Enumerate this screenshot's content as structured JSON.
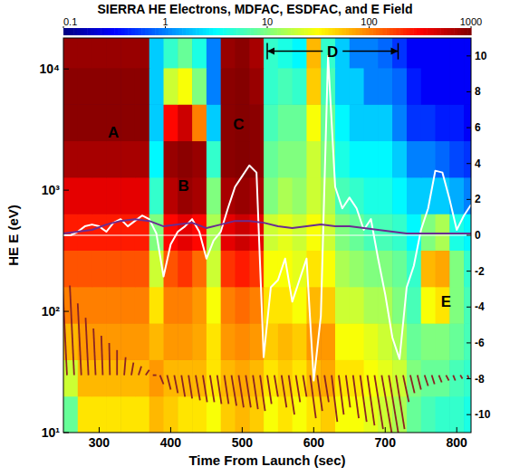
{
  "chart_data": {
    "type": "heatmap",
    "title": "SIERRA HE Electrons, MDFAC, ESDFAC, and E Field",
    "x_label": "Time From Launch (sec)",
    "y_label": "HE E (eV)",
    "log": "y",
    "xlim": [
      250,
      820
    ],
    "xticks": [
      300,
      400,
      500,
      600,
      700,
      800
    ],
    "ylim": [
      10,
      18000
    ],
    "yticks": [
      {
        "value": 10,
        "label": "10¹"
      },
      {
        "value": 100,
        "label": "10²"
      },
      {
        "value": 1000,
        "label": "10³"
      },
      {
        "value": 10000,
        "label": "10⁴"
      }
    ],
    "y2lim": [
      -11,
      11
    ],
    "y2ticks": [
      10,
      8,
      6,
      4,
      2,
      0,
      -2,
      -4,
      -6,
      -8,
      -10
    ],
    "colorbar": {
      "range": [
        0.1,
        1000
      ],
      "ticks": [
        0.1,
        1,
        10,
        100,
        1000
      ],
      "log": true
    },
    "x_edges": [
      250,
      270,
      290,
      310,
      330,
      350,
      370,
      390,
      410,
      430,
      450,
      470,
      490,
      510,
      530,
      550,
      570,
      590,
      610,
      630,
      650,
      670,
      690,
      710,
      730,
      750,
      770,
      790,
      810,
      820
    ],
    "y_edges": [
      10,
      20,
      40,
      80,
      160,
      320,
      640,
      1280,
      2560,
      5120,
      10240,
      18000
    ],
    "cells": [
      [
        8,
        40,
        40,
        40,
        40,
        40,
        60,
        50,
        40,
        40,
        30,
        50,
        60,
        50,
        30,
        40,
        30,
        40,
        50,
        30,
        30,
        25,
        20,
        15,
        8,
        6,
        5,
        5,
        4
      ],
      [
        20,
        60,
        60,
        60,
        60,
        60,
        80,
        60,
        60,
        60,
        40,
        60,
        70,
        60,
        40,
        50,
        40,
        60,
        70,
        40,
        40,
        30,
        25,
        20,
        10,
        8,
        8,
        6,
        5
      ],
      [
        60,
        80,
        80,
        80,
        80,
        80,
        60,
        80,
        80,
        70,
        40,
        80,
        90,
        80,
        50,
        60,
        50,
        80,
        80,
        30,
        30,
        25,
        20,
        15,
        8,
        10,
        10,
        8,
        6
      ],
      [
        100,
        100,
        100,
        100,
        100,
        100,
        40,
        100,
        100,
        80,
        30,
        100,
        120,
        100,
        40,
        40,
        30,
        60,
        50,
        20,
        20,
        15,
        15,
        10,
        6,
        30,
        40,
        10,
        6
      ],
      [
        150,
        150,
        150,
        150,
        150,
        150,
        20,
        150,
        200,
        120,
        20,
        200,
        250,
        200,
        30,
        30,
        25,
        40,
        30,
        15,
        12,
        10,
        10,
        8,
        5,
        60,
        70,
        10,
        5
      ],
      [
        250,
        250,
        250,
        250,
        250,
        250,
        10,
        300,
        400,
        300,
        15,
        400,
        500,
        400,
        20,
        25,
        20,
        30,
        20,
        10,
        8,
        6,
        6,
        5,
        3,
        10,
        15,
        4,
        3
      ],
      [
        400,
        400,
        400,
        400,
        400,
        400,
        5,
        600,
        800,
        700,
        10,
        700,
        800,
        700,
        10,
        15,
        12,
        20,
        15,
        6,
        5,
        4,
        4,
        3,
        2,
        2,
        2,
        1.5,
        1
      ],
      [
        700,
        700,
        700,
        700,
        700,
        700,
        3,
        800,
        900,
        800,
        5,
        900,
        950,
        900,
        8,
        10,
        10,
        20,
        10,
        4,
        3,
        3,
        3,
        2,
        1,
        1,
        0.8,
        0.6,
        0.5
      ],
      [
        900,
        900,
        900,
        900,
        900,
        900,
        2,
        300,
        500,
        100,
        2,
        900,
        950,
        900,
        6,
        8,
        8,
        30,
        8,
        3,
        2,
        2,
        2,
        1,
        0.5,
        0.5,
        0.4,
        0.4,
        0.3
      ],
      [
        900,
        900,
        900,
        900,
        900,
        900,
        2,
        20,
        30,
        10,
        1,
        900,
        950,
        800,
        5,
        6,
        5,
        50,
        6,
        2,
        2,
        1,
        1,
        0.8,
        0.4,
        0.3,
        0.3,
        0.3,
        0.3
      ],
      [
        800,
        800,
        800,
        800,
        800,
        800,
        2,
        5,
        8,
        4,
        1,
        800,
        900,
        700,
        5,
        4,
        3,
        60,
        5,
        2,
        1,
        1,
        0.8,
        0.5,
        0.3,
        0.3,
        0.3,
        0.3,
        0.3
      ]
    ],
    "series": [
      {
        "type": "line",
        "axis": "y2",
        "color": "#ffffff",
        "x": [
          250,
          260,
          270,
          280,
          290,
          300,
          310,
          320,
          330,
          340,
          350,
          360,
          370,
          380,
          390,
          400,
          410,
          420,
          430,
          440,
          450,
          460,
          470,
          480,
          490,
          500,
          510,
          520,
          530,
          540,
          550,
          560,
          570,
          580,
          590,
          600,
          610,
          620,
          630,
          640,
          650,
          660,
          670,
          680,
          690,
          700,
          710,
          720,
          730,
          740,
          750,
          760,
          770,
          780,
          790,
          800,
          810,
          820
        ],
        "values": [
          0,
          0,
          0.2,
          0.5,
          0.6,
          0.5,
          0.2,
          0.7,
          0.9,
          0.5,
          0.8,
          1.1,
          0.9,
          0.1,
          -2.3,
          -0.5,
          0.2,
          0.5,
          0.9,
          0.2,
          -1.3,
          -0.3,
          0.2,
          1.5,
          2.7,
          3.3,
          3.9,
          3.5,
          -6.8,
          -2.9,
          -2.5,
          -1.3,
          -3.7,
          -2.5,
          -1.3,
          -8.1,
          -4.5,
          10,
          2.7,
          1.5,
          2.1,
          1.5,
          0.3,
          0.9,
          -1.3,
          -3.3,
          -5.7,
          -6.9,
          -2.9,
          -1.7,
          0.3,
          1.5,
          3.6,
          3.5,
          2.0,
          0.3,
          1.1,
          1.7
        ]
      },
      {
        "type": "line",
        "axis": "y2",
        "color": "#6a2c91",
        "x": [
          250,
          270,
          290,
          310,
          330,
          350,
          370,
          390,
          410,
          430,
          450,
          470,
          490,
          510,
          530,
          550,
          570,
          590,
          610,
          630,
          650,
          670,
          690,
          710,
          730,
          750,
          770,
          790,
          810,
          820
        ],
        "values": [
          0.1,
          0.2,
          0.3,
          0.6,
          0.8,
          0.9,
          0.8,
          0.5,
          0.6,
          0.7,
          0.4,
          0.6,
          0.8,
          0.8,
          0.7,
          0.5,
          0.4,
          0.5,
          0.6,
          0.5,
          0.5,
          0.4,
          0.3,
          0.2,
          0.1,
          0.1,
          0.1,
          0.1,
          0.1,
          0.1
        ]
      }
    ],
    "vectors": {
      "axis": "y2",
      "color": "#8b2323",
      "base": -7.8,
      "x": [
        255,
        265,
        275,
        285,
        295,
        305,
        315,
        325,
        335,
        345,
        355,
        365,
        375,
        385,
        395,
        405,
        415,
        425,
        435,
        445,
        455,
        465,
        475,
        485,
        495,
        505,
        515,
        525,
        535,
        545,
        555,
        565,
        575,
        585,
        595,
        605,
        615,
        625,
        635,
        645,
        655,
        665,
        675,
        685,
        695,
        705,
        715,
        725,
        735,
        745,
        755,
        765,
        775,
        785,
        795,
        805,
        815
      ],
      "dx": [
        -8,
        -6,
        -5,
        -4,
        -3,
        -2,
        -1,
        0,
        2,
        3,
        4,
        5,
        5,
        5,
        5,
        5,
        5,
        5,
        6,
        6,
        6,
        6,
        6,
        7,
        7,
        7,
        7,
        7,
        6,
        5,
        7,
        8,
        6,
        5,
        8,
        7,
        6,
        8,
        7,
        6,
        8,
        9,
        10,
        12,
        14,
        14,
        12,
        8,
        6,
        5,
        5,
        4,
        4,
        4,
        3,
        3,
        2
      ],
      "dy": [
        6.5,
        5,
        4,
        3.2,
        2.6,
        2.2,
        1.8,
        1.4,
        1.0,
        0.7,
        0.5,
        0.3,
        0,
        -0.5,
        -0.8,
        -1,
        -1.2,
        -1.3,
        -1.4,
        -1.5,
        -1.5,
        -1.6,
        -1.6,
        -1.7,
        -1.8,
        -1.8,
        -1.9,
        -2.0,
        -1.6,
        -1.2,
        -1.8,
        -2.2,
        -1.5,
        -1.2,
        -2.4,
        -2.0,
        -1.5,
        -2.6,
        -2.2,
        -1.8,
        -2.4,
        -2.6,
        -2.8,
        -3.0,
        -3.2,
        -3.4,
        -3.0,
        -1.5,
        -1.0,
        -0.8,
        -0.6,
        -0.5,
        -0.4,
        -0.3,
        -0.3,
        -0.2,
        -0.2
      ]
    },
    "reference_line": {
      "axis": "y2",
      "value": 0,
      "color": "#ffffff"
    },
    "annotations": [
      {
        "text": "A",
        "x": 320,
        "y": 3000
      },
      {
        "text": "B",
        "x": 418,
        "y": 1100
      },
      {
        "text": "C",
        "x": 495,
        "y": 3500
      },
      {
        "text": "D",
        "x_start": 535,
        "x_end": 718,
        "y": 14000
      },
      {
        "text": "E",
        "x": 785,
        "y": 120
      }
    ]
  }
}
